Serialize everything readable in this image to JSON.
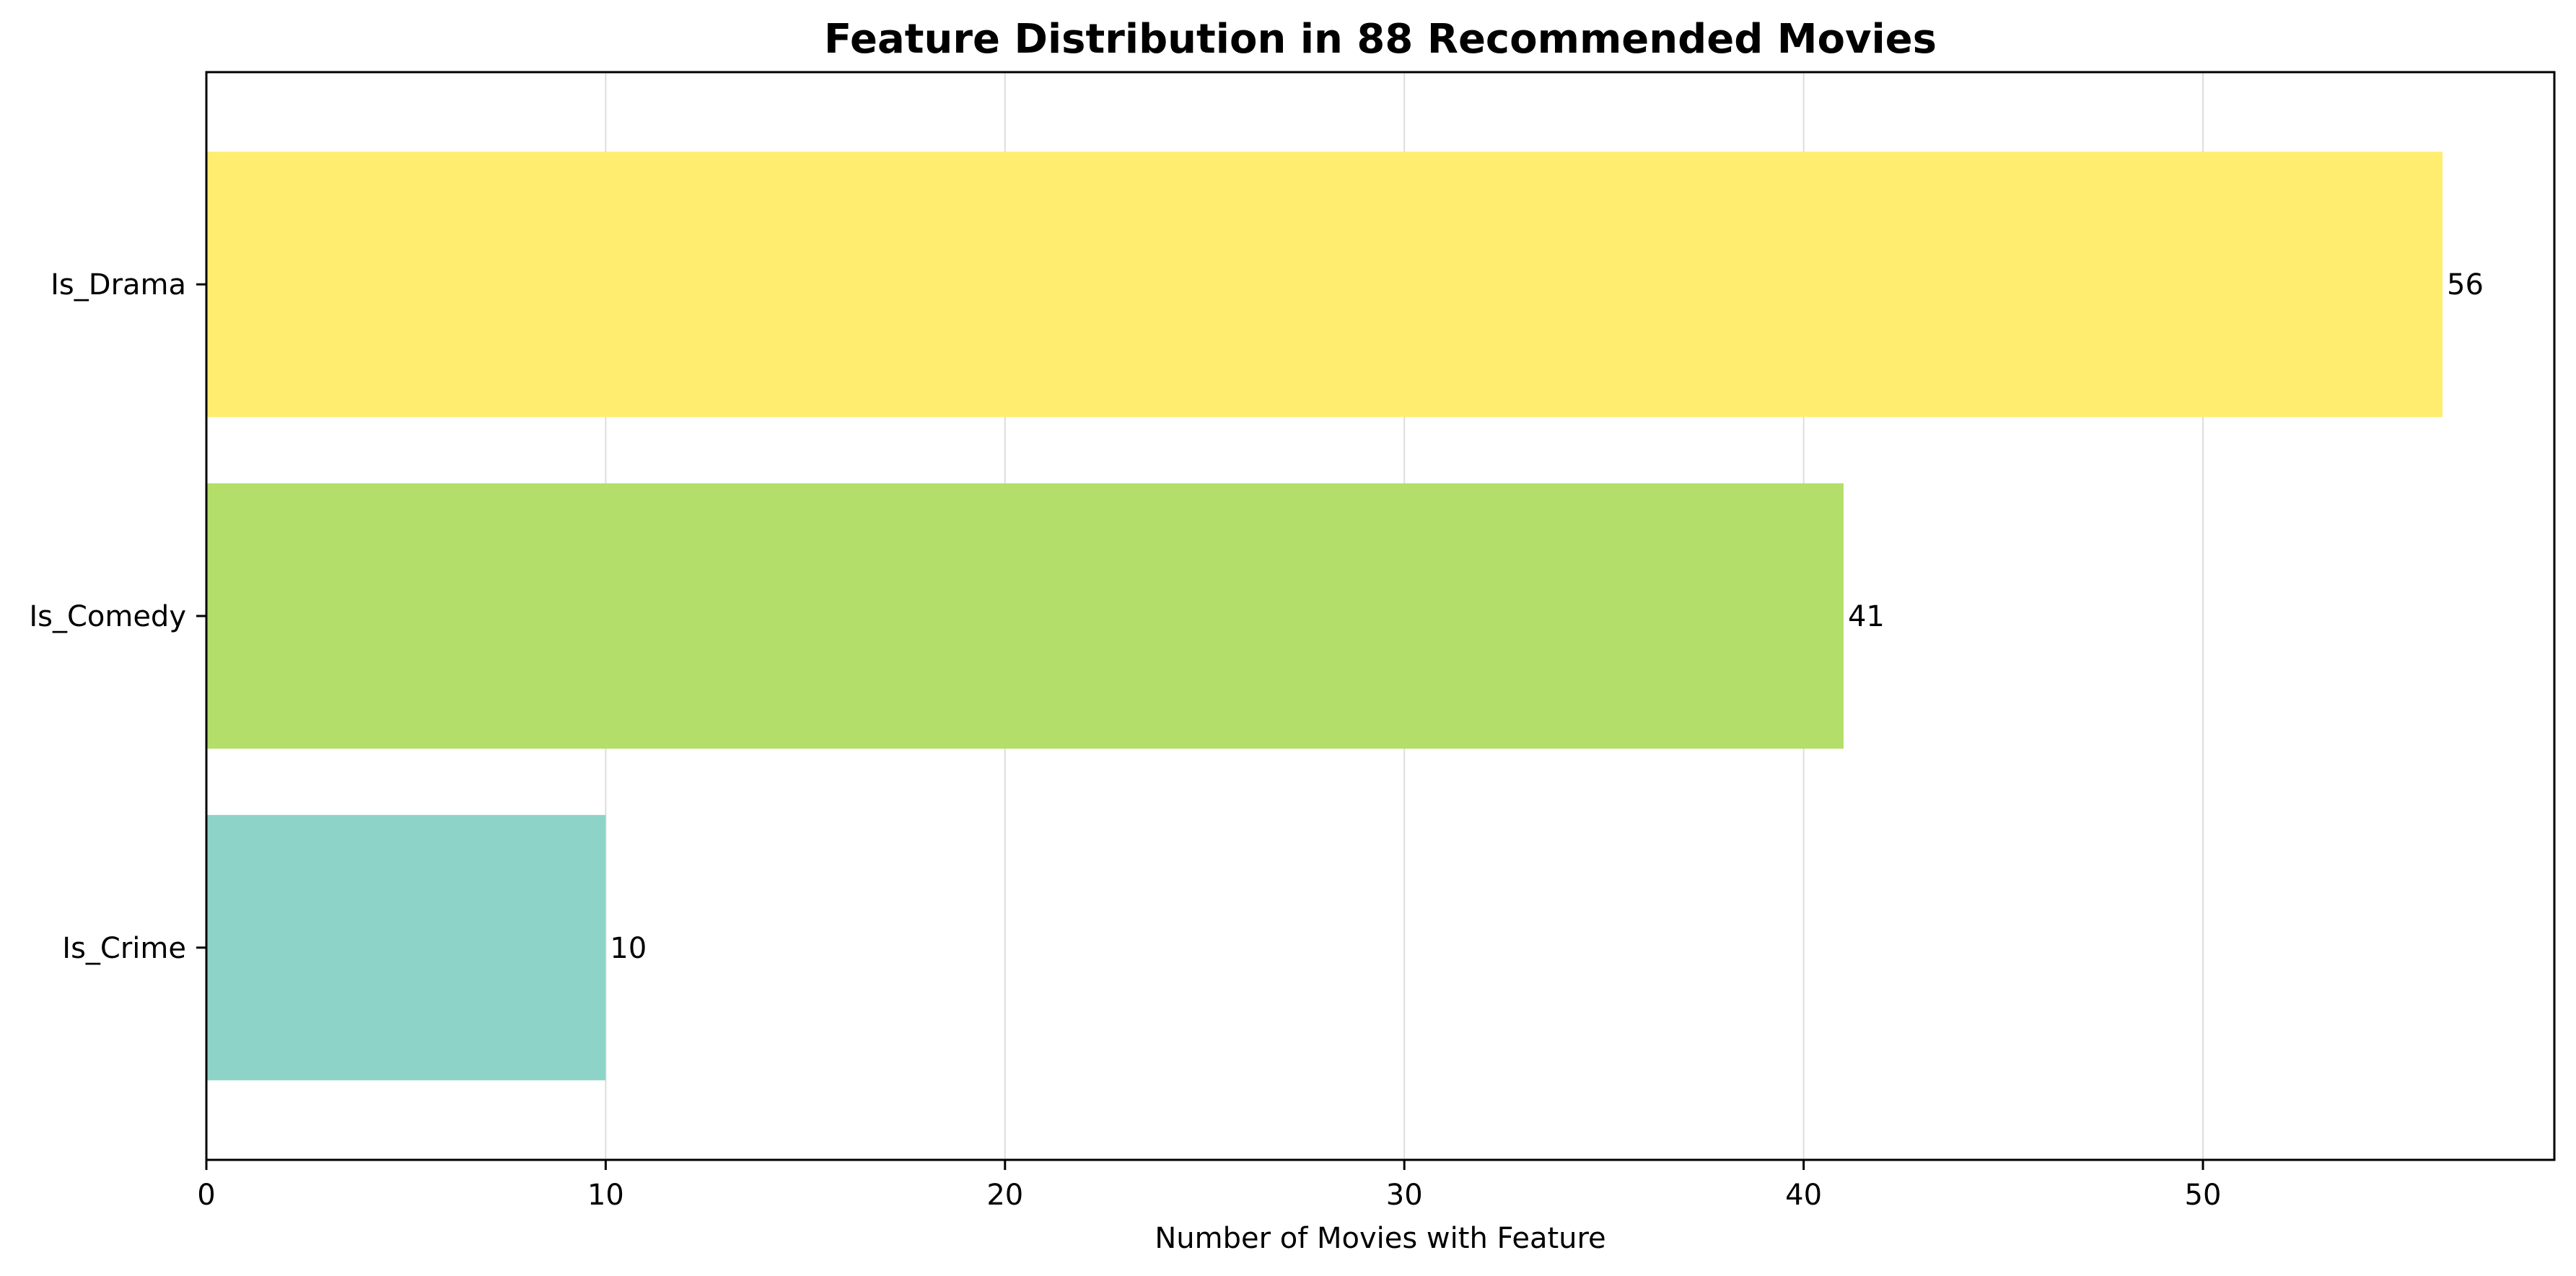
{
  "chart_data": {
    "type": "bar",
    "orientation": "horizontal",
    "title": "Feature Distribution in 88 Recommended Movies",
    "xlabel": "Number of Movies with Feature",
    "ylabel": "",
    "categories": [
      "Is_Crime",
      "Is_Comedy",
      "Is_Drama"
    ],
    "values": [
      10,
      41,
      56
    ],
    "data_labels": [
      "10",
      "41",
      "56"
    ],
    "colors": [
      "#8dd3c7",
      "#b3de69",
      "#ffed6f"
    ],
    "xlim": [
      0,
      58.8
    ],
    "xticks": [
      0,
      10,
      20,
      30,
      40,
      50
    ],
    "xtick_labels": [
      "0",
      "10",
      "20",
      "30",
      "40",
      "50"
    ],
    "grid": {
      "x": true,
      "y": false,
      "color": "#dddddd"
    }
  }
}
